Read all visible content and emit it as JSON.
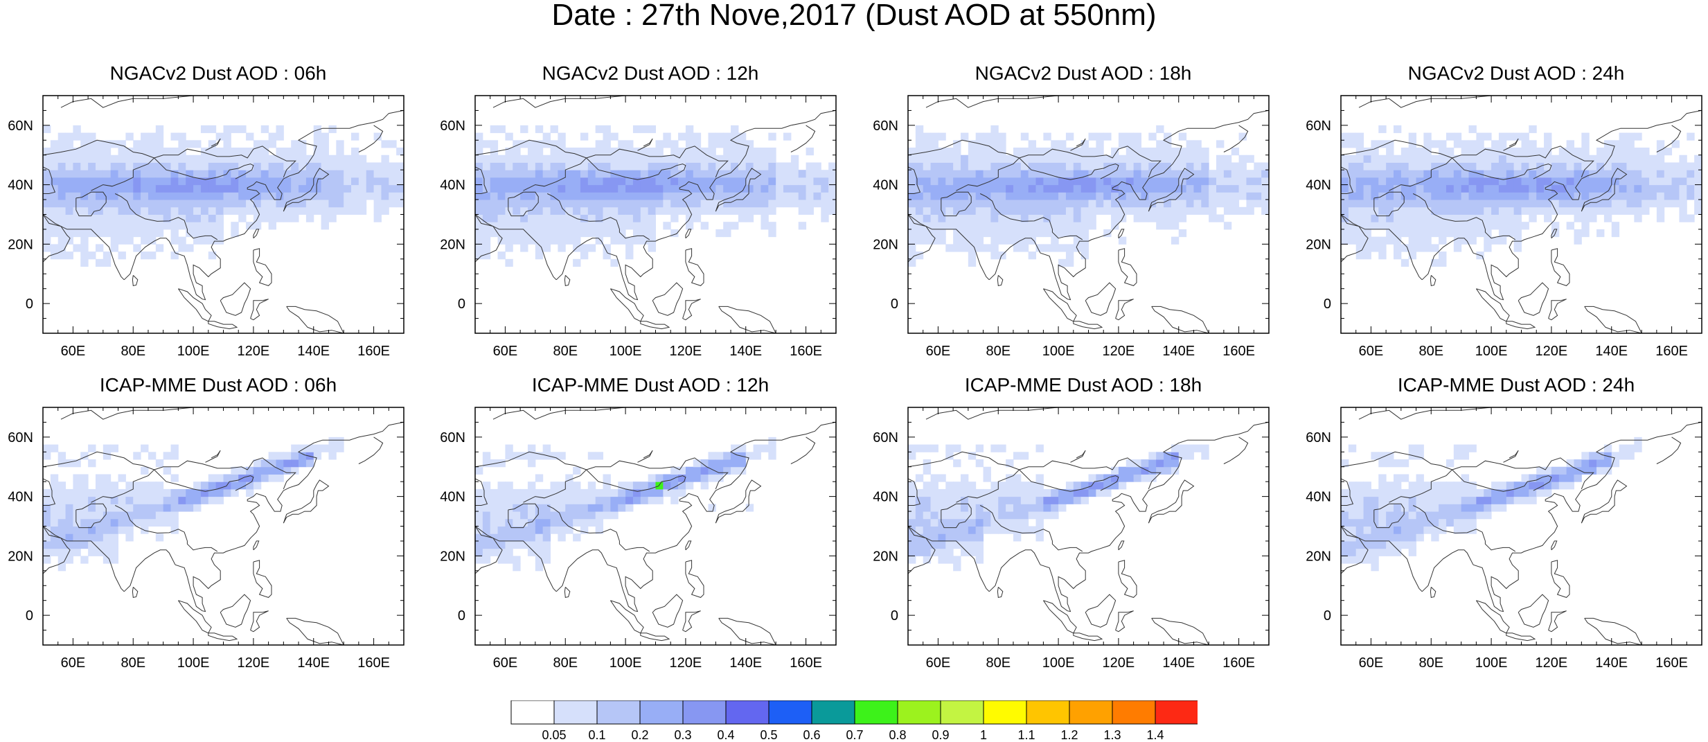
{
  "title": "Date : 27th Nove,2017 (Dust AOD at 550nm)",
  "map": {
    "lon_ticks": [
      "60E",
      "80E",
      "100E",
      "120E",
      "140E",
      "160E"
    ],
    "lon_tick_values": [
      60,
      80,
      100,
      120,
      140,
      160
    ],
    "lat_ticks": [
      "60N",
      "40N",
      "20N",
      "0"
    ],
    "lat_tick_values": [
      60,
      40,
      20,
      0
    ],
    "lon_range": [
      50,
      170
    ],
    "lat_range": [
      -10,
      70
    ]
  },
  "panels": [
    {
      "title": "NGACv2 Dust AOD : 06h",
      "model": "NGACv2",
      "hour": "06h"
    },
    {
      "title": "NGACv2 Dust AOD : 12h",
      "model": "NGACv2",
      "hour": "12h"
    },
    {
      "title": "NGACv2 Dust AOD : 18h",
      "model": "NGACv2",
      "hour": "18h"
    },
    {
      "title": "NGACv2 Dust AOD : 24h",
      "model": "NGACv2",
      "hour": "24h"
    },
    {
      "title": "ICAP-MME Dust AOD : 06h",
      "model": "ICAP-MME",
      "hour": "06h"
    },
    {
      "title": "ICAP-MME Dust AOD : 12h",
      "model": "ICAP-MME",
      "hour": "12h"
    },
    {
      "title": "ICAP-MME Dust AOD : 18h",
      "model": "ICAP-MME",
      "hour": "18h"
    },
    {
      "title": "ICAP-MME Dust AOD : 24h",
      "model": "ICAP-MME",
      "hour": "24h"
    }
  ],
  "colorbar": {
    "labels": [
      "0.05",
      "0.1",
      "0.2",
      "0.3",
      "0.4",
      "0.5",
      "0.6",
      "0.7",
      "0.8",
      "0.9",
      "1",
      "1.1",
      "1.2",
      "1.3",
      "1.4"
    ],
    "colors": [
      "#ffffff",
      "#d6e0fb",
      "#b6c6f7",
      "#98aef6",
      "#8797f2",
      "#6367f0",
      "#1d5ff6",
      "#0a9a9a",
      "#3df21a",
      "#9cf21e",
      "#c3f442",
      "#fffb00",
      "#ffc500",
      "#ffa100",
      "#ff7c00",
      "#fd2914"
    ]
  }
}
